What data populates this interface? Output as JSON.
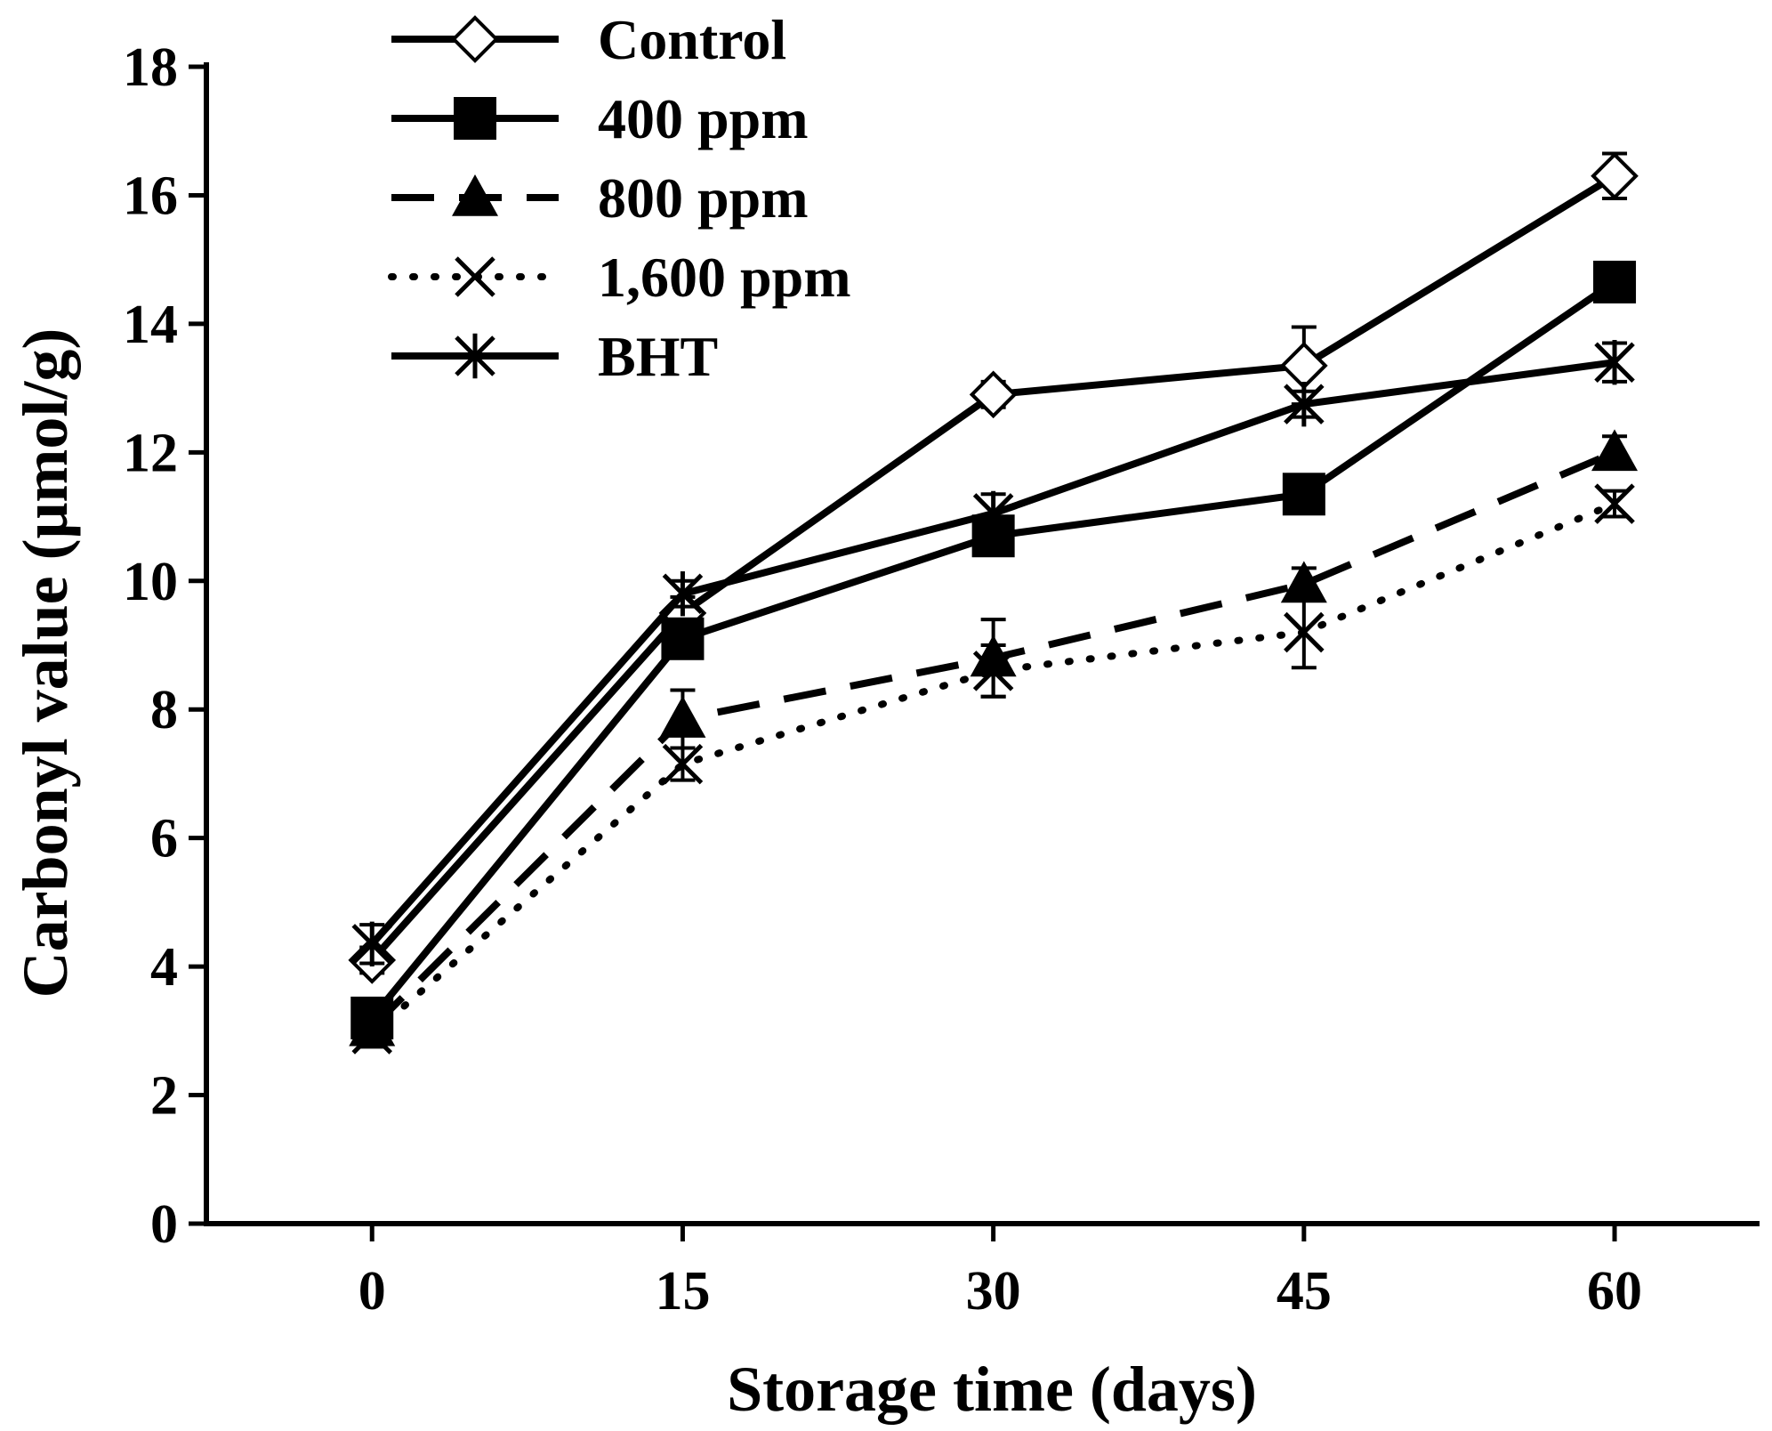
{
  "chart_data": {
    "type": "line",
    "title": "",
    "xlabel": "Storage time (days)",
    "ylabel": "Carbonyl value (μmol/g)",
    "x": [
      0,
      15,
      30,
      45,
      60
    ],
    "x_tick_labels": [
      "0",
      "15",
      "30",
      "45",
      "60"
    ],
    "xlim": [
      -8,
      67
    ],
    "ylim": [
      0,
      18
    ],
    "y_ticks": [
      0,
      2,
      4,
      6,
      8,
      10,
      12,
      14,
      16,
      18
    ],
    "y_tick_labels": [
      "0",
      "2",
      "4",
      "6",
      "8",
      "10",
      "12",
      "14",
      "16",
      "18"
    ],
    "grid": false,
    "legend_position": "top-left",
    "series": [
      {
        "name": "Control",
        "marker": "open-diamond",
        "line_style": "solid",
        "values": [
          4.1,
          9.5,
          12.9,
          13.35,
          16.3
        ],
        "errors": [
          0.2,
          0.25,
          0.2,
          0.6,
          0.35
        ]
      },
      {
        "name": "400 ppm",
        "marker": "filled-square",
        "line_style": "solid",
        "values": [
          3.2,
          9.1,
          10.7,
          11.35,
          14.65
        ],
        "errors": [
          0.2,
          0.2,
          0.2,
          0.2,
          0.25
        ]
      },
      {
        "name": "800 ppm",
        "marker": "filled-triangle",
        "line_style": "dashed",
        "values": [
          3.05,
          7.85,
          8.8,
          9.95,
          12.0
        ],
        "errors": [
          0.2,
          0.45,
          0.6,
          0.25,
          0.25
        ]
      },
      {
        "name": "1,600 ppm",
        "marker": "x",
        "line_style": "dotted",
        "values": [
          2.95,
          7.15,
          8.6,
          9.2,
          11.2
        ],
        "errors": [
          0.2,
          0.25,
          0.4,
          0.55,
          0.2
        ]
      },
      {
        "name": "BHT",
        "marker": "star",
        "line_style": "solid",
        "values": [
          4.35,
          9.8,
          11.05,
          12.75,
          13.4
        ],
        "errors": [
          0.3,
          0.2,
          0.3,
          0.2,
          0.3
        ]
      }
    ]
  }
}
